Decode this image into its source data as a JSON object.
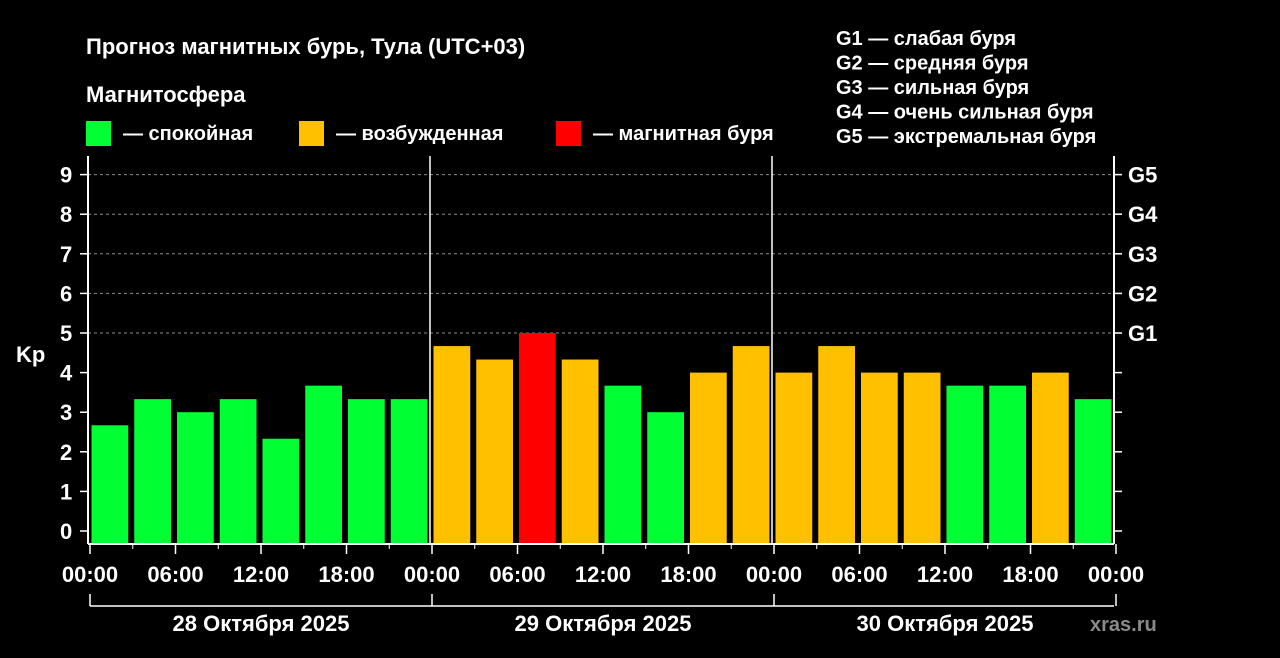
{
  "chart_data": {
    "type": "bar",
    "title": "Прогноз магнитных бурь, Тула (UTC+03)",
    "legend_title": "Магнитосфера",
    "legend": [
      {
        "key": "calm",
        "label": "— спокойная",
        "color": "#00ff33"
      },
      {
        "key": "excited",
        "label": "— возбужденная",
        "color": "#ffc000"
      },
      {
        "key": "storm",
        "label": "— магнитная буря",
        "color": "#ff0000"
      }
    ],
    "g_legend": [
      "G1 — слабая буря",
      "G2 — средняя буря",
      "G3 — сильная буря",
      "G4 — очень сильная буря",
      "G5 — экстремальная буря"
    ],
    "ylabel": "Kp",
    "ylim": [
      0,
      9
    ],
    "yticks": [
      0,
      1,
      2,
      3,
      4,
      5,
      6,
      7,
      8,
      9
    ],
    "y2ticks": [
      {
        "value": 5,
        "label": "G1"
      },
      {
        "value": 6,
        "label": "G2"
      },
      {
        "value": 7,
        "label": "G3"
      },
      {
        "value": 8,
        "label": "G4"
      },
      {
        "value": 9,
        "label": "G5"
      }
    ],
    "grid": true,
    "xtick_labels": [
      "00:00",
      "06:00",
      "12:00",
      "18:00",
      "00:00",
      "06:00",
      "12:00",
      "18:00",
      "00:00",
      "06:00",
      "12:00",
      "18:00",
      "00:00"
    ],
    "days": [
      "28 Октября 2025",
      "29 Октября 2025",
      "30 Октября 2025"
    ],
    "bars_per_day": 8,
    "values": [
      2.67,
      3.33,
      3.0,
      3.33,
      2.33,
      3.67,
      3.33,
      3.33,
      4.67,
      4.33,
      5.0,
      4.33,
      3.67,
      3.0,
      4.0,
      4.67,
      4.0,
      4.67,
      4.0,
      4.0,
      3.67,
      3.67,
      4.0,
      3.33
    ],
    "levels": [
      "calm",
      "calm",
      "calm",
      "calm",
      "calm",
      "calm",
      "calm",
      "calm",
      "excited",
      "excited",
      "storm",
      "excited",
      "calm",
      "calm",
      "excited",
      "excited",
      "excited",
      "excited",
      "excited",
      "excited",
      "calm",
      "calm",
      "excited",
      "calm"
    ]
  },
  "watermark": "xras.ru"
}
